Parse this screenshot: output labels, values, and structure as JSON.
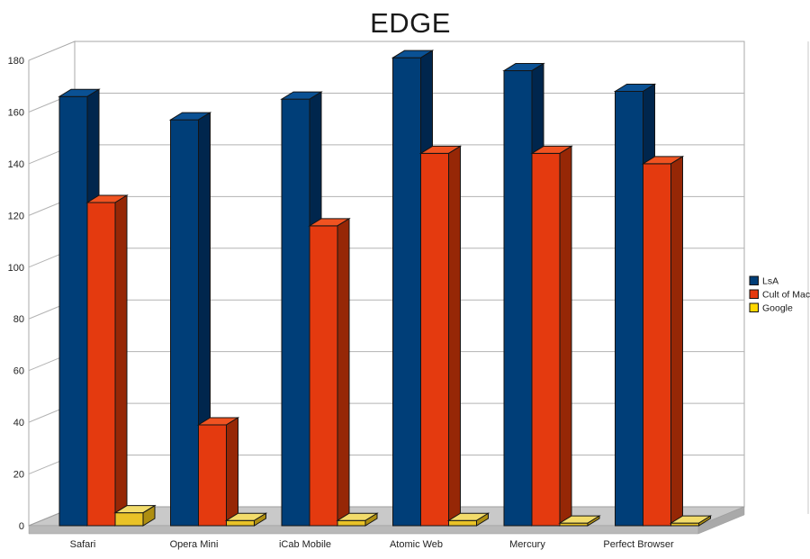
{
  "title": "EDGE",
  "chart_data": {
    "type": "bar",
    "projection": "3d-parallel",
    "title": "EDGE",
    "categories": [
      "Safari",
      "Opera Mini",
      "iCab Mobile",
      "Atomic Web",
      "Mercury",
      "Perfect Browser"
    ],
    "series": [
      {
        "name": "LsA",
        "values": [
          166,
          157,
          165,
          181,
          176,
          168
        ],
        "color": "#003E78",
        "color_top": "#0A5194",
        "color_side": "#00264D"
      },
      {
        "name": "Cult of Mac",
        "values": [
          125,
          39,
          116,
          144,
          144,
          140
        ],
        "color": "#E43A0F",
        "color_top": "#F05321",
        "color_side": "#962706"
      },
      {
        "name": "Google",
        "values": [
          5,
          2,
          2,
          2,
          1,
          1
        ],
        "color": "#E9C227",
        "color_top": "#F2DC6B",
        "color_side": "#AE8E11"
      }
    ],
    "xlabel": "",
    "ylabel": "",
    "ylim": [
      0,
      180
    ],
    "yticks": [
      0,
      20,
      40,
      60,
      80,
      100,
      120,
      140,
      160,
      180
    ],
    "grid": true,
    "legend_position": "right",
    "legend": [
      "LsA",
      "Cult of Mac",
      "Google"
    ]
  },
  "style": {
    "wall_fill": "#FFFFFF",
    "wall_stroke": "#A8A8A8",
    "gridline": "#B3B3B3",
    "floor_top": "#C9C9C9",
    "floor_front": "#B9B9B9",
    "floor_side": "#A9A9A9",
    "bar_outline": "#141414",
    "text_color": "#1A1A1A",
    "frame_line": "#C9C9C9"
  }
}
